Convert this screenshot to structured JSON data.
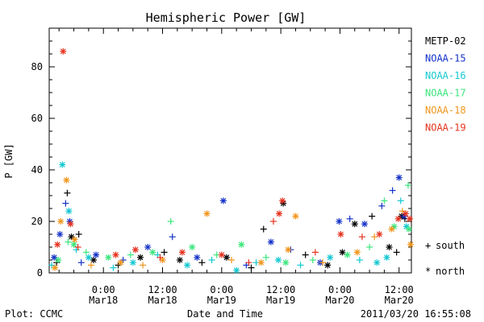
{
  "chart_data": {
    "type": "scatter",
    "title": "Hemispheric Power [GW]",
    "xlabel": "Date and Time",
    "ylabel": "P [GW]",
    "ylim": [
      0,
      95
    ],
    "xlim": [
      "2011-03-17 13:00",
      "2011-03-20 14:30"
    ],
    "yticks": [
      0,
      20,
      40,
      60,
      80
    ],
    "xticks": [
      {
        "time": "2011-03-18 00:00",
        "line1": "0:00",
        "line2": "Mar18"
      },
      {
        "time": "2011-03-18 12:00",
        "line1": "12:00",
        "line2": "Mar18"
      },
      {
        "time": "2011-03-19 00:00",
        "line1": "0:00",
        "line2": "Mar19"
      },
      {
        "time": "2011-03-19 12:00",
        "line1": "12:00",
        "line2": "Mar19"
      },
      {
        "time": "2011-03-20 00:00",
        "line1": "0:00",
        "line2": "Mar20"
      },
      {
        "time": "2011-03-20 12:00",
        "line1": "12:00",
        "line2": "Mar20"
      }
    ],
    "grid": false,
    "legend": {
      "placement": "right",
      "marker_key": [
        {
          "symbol": "+",
          "label": "south"
        },
        {
          "symbol": "*",
          "label": "north"
        }
      ]
    },
    "series": [
      {
        "name": "METP-02",
        "color": "#000000",
        "points": [
          [
            "2011-03-17 14:30",
            4,
            "south"
          ],
          [
            "2011-03-17 16:40",
            31,
            "south"
          ],
          [
            "2011-03-17 17:30",
            14,
            "north"
          ],
          [
            "2011-03-17 19:00",
            15,
            "south"
          ],
          [
            "2011-03-17 22:00",
            5,
            "north"
          ],
          [
            "2011-03-18 03:00",
            3,
            "south"
          ],
          [
            "2011-03-18 07:30",
            6,
            "north"
          ],
          [
            "2011-03-18 12:20",
            8,
            "south"
          ],
          [
            "2011-03-18 15:30",
            5,
            "north"
          ],
          [
            "2011-03-18 20:00",
            4,
            "south"
          ],
          [
            "2011-03-19 01:00",
            6,
            "north"
          ],
          [
            "2011-03-19 06:00",
            2,
            "south"
          ],
          [
            "2011-03-19 08:30",
            17,
            "south"
          ],
          [
            "2011-03-19 12:30",
            27,
            "north"
          ],
          [
            "2011-03-19 17:00",
            7,
            "south"
          ],
          [
            "2011-03-19 21:30",
            3,
            "north"
          ],
          [
            "2011-03-20 00:30",
            8,
            "north"
          ],
          [
            "2011-03-20 03:00",
            19,
            "north"
          ],
          [
            "2011-03-20 06:30",
            22,
            "south"
          ],
          [
            "2011-03-20 10:00",
            10,
            "north"
          ],
          [
            "2011-03-20 11:30",
            8,
            "south"
          ],
          [
            "2011-03-20 12:30",
            22,
            "north"
          ],
          [
            "2011-03-20 13:10",
            21,
            "south"
          ]
        ]
      },
      {
        "name": "NOAA-15",
        "color": "#1432c8",
        "points": [
          [
            "2011-03-17 14:00",
            6,
            "north"
          ],
          [
            "2011-03-17 15:10",
            15,
            "north"
          ],
          [
            "2011-03-17 16:20",
            27,
            "south"
          ],
          [
            "2011-03-17 17:10",
            20,
            "north"
          ],
          [
            "2011-03-17 19:30",
            4,
            "south"
          ],
          [
            "2011-03-17 22:30",
            7,
            "north"
          ],
          [
            "2011-03-18 04:00",
            5,
            "south"
          ],
          [
            "2011-03-18 09:00",
            10,
            "north"
          ],
          [
            "2011-03-18 14:00",
            14,
            "south"
          ],
          [
            "2011-03-18 19:00",
            6,
            "north"
          ],
          [
            "2011-03-19 00:20",
            28,
            "north"
          ],
          [
            "2011-03-19 05:00",
            3,
            "south"
          ],
          [
            "2011-03-19 10:00",
            12,
            "north"
          ],
          [
            "2011-03-19 14:00",
            9,
            "south"
          ],
          [
            "2011-03-19 20:00",
            4,
            "north"
          ],
          [
            "2011-03-19 23:50",
            20,
            "north"
          ],
          [
            "2011-03-20 02:00",
            21,
            "south"
          ],
          [
            "2011-03-20 05:00",
            19,
            "north"
          ],
          [
            "2011-03-20 08:30",
            26,
            "south"
          ],
          [
            "2011-03-20 10:40",
            32,
            "south"
          ],
          [
            "2011-03-20 12:00",
            37,
            "north"
          ],
          [
            "2011-03-20 13:00",
            22,
            "north"
          ]
        ]
      },
      {
        "name": "NOAA-16",
        "color": "#14c8d2",
        "points": [
          [
            "2011-03-17 13:30",
            3,
            "south"
          ],
          [
            "2011-03-17 15:40",
            42,
            "north"
          ],
          [
            "2011-03-17 17:00",
            24,
            "north"
          ],
          [
            "2011-03-17 18:30",
            9,
            "south"
          ],
          [
            "2011-03-17 21:00",
            6,
            "north"
          ],
          [
            "2011-03-18 02:00",
            2,
            "south"
          ],
          [
            "2011-03-18 06:00",
            4,
            "north"
          ],
          [
            "2011-03-18 11:00",
            7,
            "south"
          ],
          [
            "2011-03-18 17:00",
            3,
            "north"
          ],
          [
            "2011-03-18 22:00",
            5,
            "south"
          ],
          [
            "2011-03-19 03:00",
            1,
            "north"
          ],
          [
            "2011-03-19 07:00",
            4,
            "south"
          ],
          [
            "2011-03-19 11:30",
            5,
            "north"
          ],
          [
            "2011-03-19 16:00",
            3,
            "south"
          ],
          [
            "2011-03-19 22:00",
            6,
            "north"
          ],
          [
            "2011-03-20 04:00",
            5,
            "south"
          ],
          [
            "2011-03-20 07:30",
            4,
            "north"
          ],
          [
            "2011-03-20 09:30",
            6,
            "north"
          ],
          [
            "2011-03-20 12:20",
            28,
            "south"
          ],
          [
            "2011-03-20 13:30",
            18,
            "north"
          ]
        ]
      },
      {
        "name": "NOAA-17",
        "color": "#3ce67d",
        "points": [
          [
            "2011-03-17 14:50",
            5,
            "north"
          ],
          [
            "2011-03-17 16:50",
            12,
            "south"
          ],
          [
            "2011-03-17 18:00",
            11,
            "north"
          ],
          [
            "2011-03-17 20:30",
            8,
            "south"
          ],
          [
            "2011-03-18 01:00",
            6,
            "north"
          ],
          [
            "2011-03-18 05:30",
            7,
            "south"
          ],
          [
            "2011-03-18 10:00",
            8,
            "north"
          ],
          [
            "2011-03-18 13:40",
            20,
            "south"
          ],
          [
            "2011-03-18 18:00",
            10,
            "north"
          ],
          [
            "2011-03-18 23:00",
            7,
            "south"
          ],
          [
            "2011-03-19 04:00",
            11,
            "north"
          ],
          [
            "2011-03-19 09:00",
            6,
            "south"
          ],
          [
            "2011-03-19 13:00",
            4,
            "north"
          ],
          [
            "2011-03-19 18:30",
            5,
            "south"
          ],
          [
            "2011-03-20 01:30",
            7,
            "north"
          ],
          [
            "2011-03-20 06:00",
            10,
            "south"
          ],
          [
            "2011-03-20 09:00",
            28,
            "south"
          ],
          [
            "2011-03-20 11:00",
            18,
            "north"
          ],
          [
            "2011-03-20 13:50",
            34,
            "south"
          ],
          [
            "2011-03-20 14:00",
            17,
            "north"
          ]
        ]
      },
      {
        "name": "NOAA-18",
        "color": "#f0961e",
        "points": [
          [
            "2011-03-17 14:10",
            2,
            "north"
          ],
          [
            "2011-03-17 15:20",
            20,
            "north"
          ],
          [
            "2011-03-17 16:30",
            36,
            "north"
          ],
          [
            "2011-03-17 18:10",
            13,
            "north"
          ],
          [
            "2011-03-17 21:30",
            3,
            "south"
          ],
          [
            "2011-03-18 03:30",
            4,
            "north"
          ],
          [
            "2011-03-18 08:00",
            3,
            "south"
          ],
          [
            "2011-03-18 12:00",
            5,
            "north"
          ],
          [
            "2011-03-18 21:00",
            23,
            "north"
          ],
          [
            "2011-03-19 02:00",
            5,
            "south"
          ],
          [
            "2011-03-19 08:00",
            4,
            "north"
          ],
          [
            "2011-03-19 13:30",
            9,
            "north"
          ],
          [
            "2011-03-19 15:00",
            22,
            "north"
          ],
          [
            "2011-03-19 20:30",
            4,
            "south"
          ],
          [
            "2011-03-20 03:30",
            8,
            "north"
          ],
          [
            "2011-03-20 07:00",
            14,
            "south"
          ],
          [
            "2011-03-20 10:30",
            17,
            "north"
          ],
          [
            "2011-03-20 12:40",
            24,
            "south"
          ],
          [
            "2011-03-20 14:20",
            11,
            "north"
          ]
        ]
      },
      {
        "name": "NOAA-19",
        "color": "#e6321e",
        "points": [
          [
            "2011-03-17 14:40",
            11,
            "north"
          ],
          [
            "2011-03-17 15:50",
            86,
            "north"
          ],
          [
            "2011-03-17 17:20",
            19,
            "north"
          ],
          [
            "2011-03-17 18:50",
            10,
            "south"
          ],
          [
            "2011-03-18 02:30",
            7,
            "north"
          ],
          [
            "2011-03-18 06:30",
            9,
            "north"
          ],
          [
            "2011-03-18 11:30",
            6,
            "south"
          ],
          [
            "2011-03-18 16:00",
            8,
            "north"
          ],
          [
            "2011-03-19 00:00",
            7,
            "north"
          ],
          [
            "2011-03-19 05:30",
            4,
            "south"
          ],
          [
            "2011-03-19 10:30",
            20,
            "south"
          ],
          [
            "2011-03-19 11:40",
            23,
            "north"
          ],
          [
            "2011-03-19 12:20",
            28,
            "north"
          ],
          [
            "2011-03-19 19:00",
            8,
            "south"
          ],
          [
            "2011-03-20 00:10",
            15,
            "north"
          ],
          [
            "2011-03-20 04:30",
            14,
            "south"
          ],
          [
            "2011-03-20 08:00",
            15,
            "north"
          ],
          [
            "2011-03-20 11:50",
            21,
            "north"
          ],
          [
            "2011-03-20 13:20",
            23,
            "north"
          ],
          [
            "2011-03-20 14:10",
            21,
            "north"
          ]
        ]
      }
    ]
  },
  "footer": {
    "plot_credit": "Plot: CCMC",
    "timestamp": "2011/03/20 16:55:08"
  }
}
